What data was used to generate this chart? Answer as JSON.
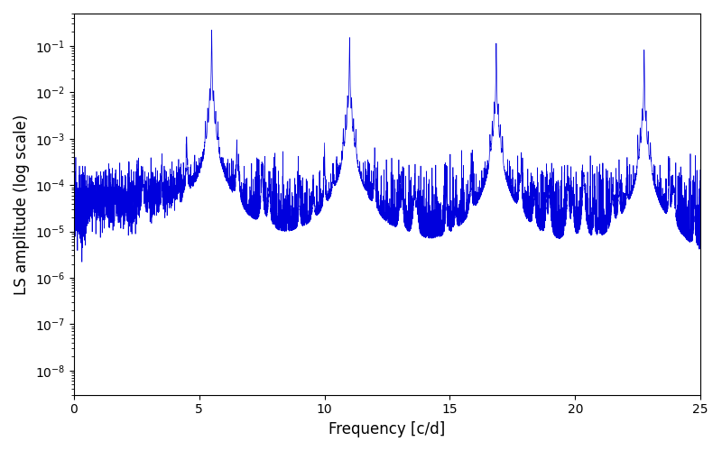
{
  "xlabel": "Frequency [c/d]",
  "ylabel": "LS amplitude (log scale)",
  "xlim": [
    0,
    25
  ],
  "ylim": [
    3e-09,
    0.5
  ],
  "line_color": "#0000dd",
  "line_width": 0.5,
  "background_color": "#ffffff",
  "peak_freqs": [
    5.5,
    11.0,
    16.85,
    22.75
  ],
  "peak_amps": [
    0.22,
    0.155,
    0.115,
    0.082
  ],
  "base_level": 8e-06,
  "seed": 137,
  "n_points": 8000,
  "freq_min": 0.0,
  "freq_max": 25.0,
  "figsize": [
    8.0,
    5.0
  ],
  "dpi": 100,
  "xticks": [
    0,
    5,
    10,
    15,
    20,
    25
  ]
}
